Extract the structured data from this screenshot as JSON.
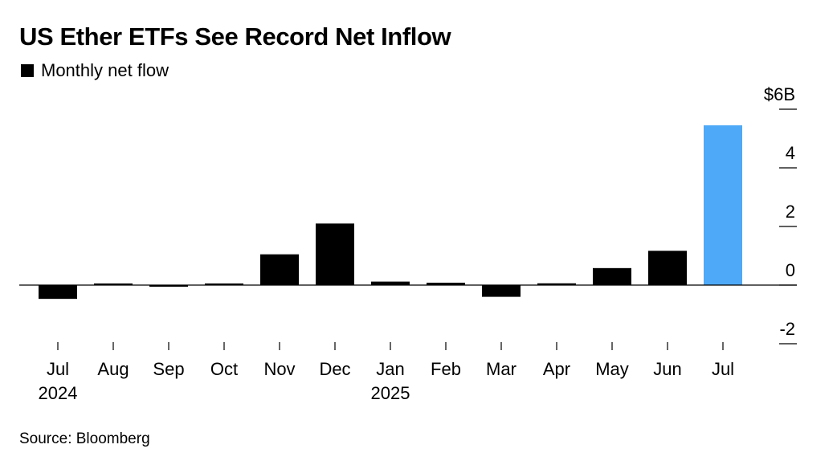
{
  "title": "US Ether ETFs See Record Net Inflow",
  "legend": {
    "label": "Monthly net flow"
  },
  "source": "Source: Bloomberg",
  "chart_data": {
    "type": "bar",
    "categories": [
      "Jul",
      "Aug",
      "Sep",
      "Oct",
      "Nov",
      "Dec",
      "Jan",
      "Feb",
      "Mar",
      "Apr",
      "May",
      "Jun",
      "Jul"
    ],
    "year_labels": [
      "2024",
      "",
      "",
      "",
      "",
      "",
      "2025",
      "",
      "",
      "",
      "",
      "",
      ""
    ],
    "series": [
      {
        "name": "Monthly net flow",
        "values": [
          -0.47,
          0.02,
          -0.05,
          0.05,
          1.05,
          2.1,
          0.12,
          0.08,
          -0.4,
          0.06,
          0.58,
          1.17,
          5.45
        ]
      }
    ],
    "bar_colors": [
      "#000000",
      "#000000",
      "#000000",
      "#000000",
      "#000000",
      "#000000",
      "#000000",
      "#000000",
      "#000000",
      "#000000",
      "#000000",
      "#000000",
      "#4ea9f8"
    ],
    "highlight_color": "#4ea9f8",
    "base_color": "#000000",
    "y_ticks": [
      -2,
      0,
      2,
      4,
      6
    ],
    "y_tick_labels": [
      "-2",
      "0",
      "2",
      "4",
      "$6B"
    ],
    "ylim": [
      -2,
      6
    ],
    "axis_position": "right",
    "grid": false,
    "legend_position": "top-left"
  }
}
